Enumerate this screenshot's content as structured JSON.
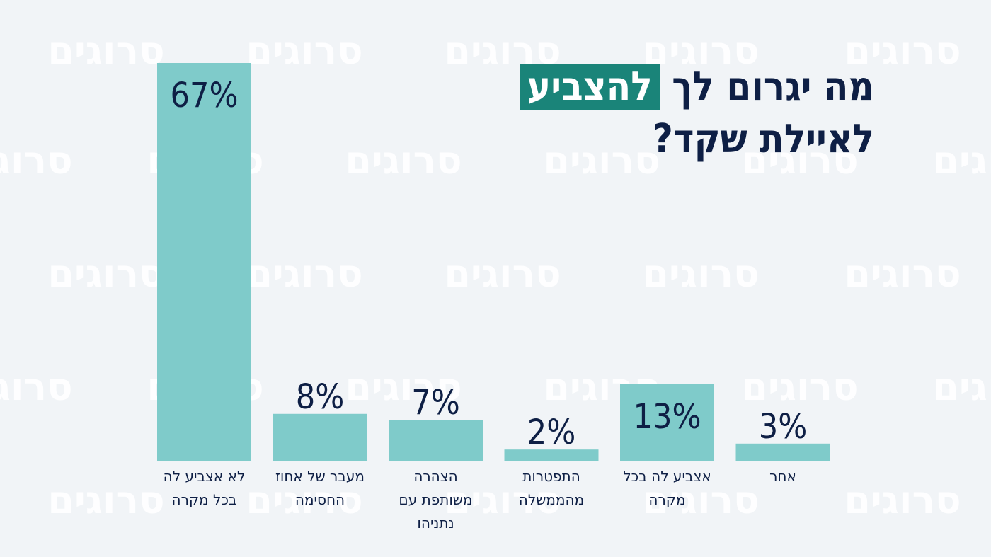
{
  "watermark": "סרוגים",
  "title": {
    "line1_before": "מה יגרום לך ",
    "line1_highlight": "להצביע",
    "line2": "לאיילת שקד?"
  },
  "colors": {
    "bar": "#7fcbca",
    "text": "#0e1f45",
    "highlight_bg": "#1a8479",
    "background": "#f1f4f7"
  },
  "chart_data": {
    "type": "bar",
    "categories": [
      "לא אצביע לה בכל מקרה",
      "מעבר של אחוז החסימה",
      "הצהרה משותפת עם נתניהו",
      "התפטרות מהממשלה",
      "אצביע לה בכל מקרה",
      "אחר"
    ],
    "category_lines": [
      [
        "לא אצביע לה",
        "בכל מקרה"
      ],
      [
        "מעבר של אחוז",
        "החסימה"
      ],
      [
        "הצהרה",
        "משותפת עם",
        "נתניהו"
      ],
      [
        "התפטרות",
        "מהממשלה"
      ],
      [
        "אצביע לה בכל",
        "מקרה"
      ],
      [
        "אחר"
      ]
    ],
    "values": [
      67,
      8,
      7,
      2,
      13,
      3
    ],
    "data_labels": [
      "67%",
      "8%",
      "7%",
      "2%",
      "13%",
      "3%"
    ],
    "unit": "%",
    "title": "מה יגרום לך להצביע לאיילת שקד?",
    "xlabel": "",
    "ylabel": "",
    "grid": false
  }
}
